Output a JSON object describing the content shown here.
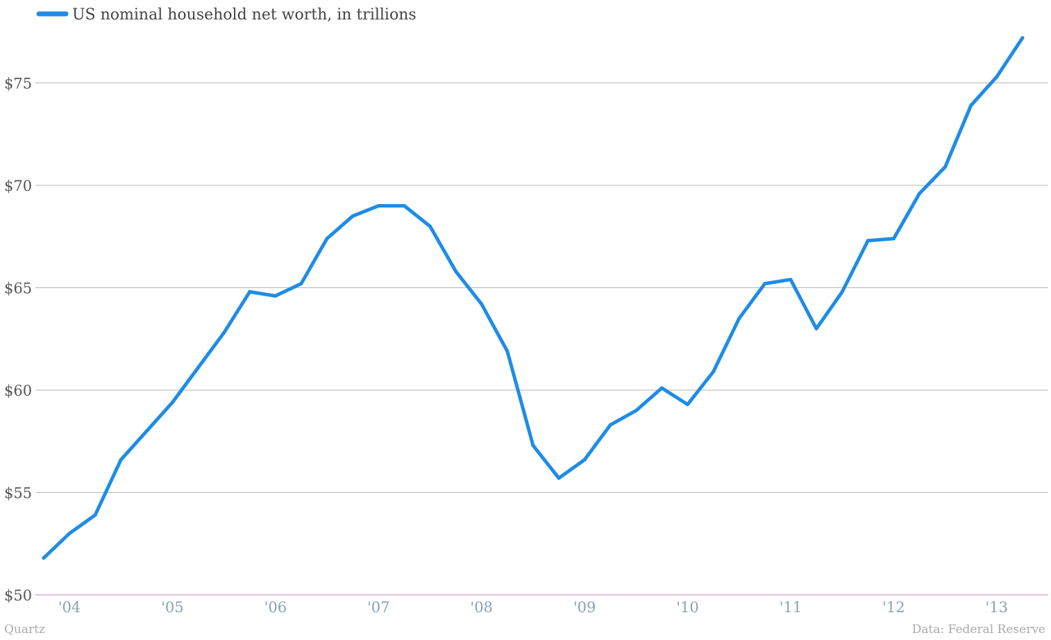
{
  "chart_data": {
    "type": "line",
    "ylim": [
      50,
      78
    ],
    "y_ticks": [
      50,
      55,
      60,
      65,
      70,
      75
    ],
    "y_tick_labels": [
      "$50",
      "$55",
      "$60",
      "$65",
      "$70",
      "$75"
    ],
    "x_tick_labels": [
      "'04",
      "'05",
      "'06",
      "'07",
      "'08",
      "'09",
      "'10",
      "'11",
      "'12",
      "'13"
    ],
    "x_tick_years": [
      2004,
      2005,
      2006,
      2007,
      2008,
      2009,
      2010,
      2011,
      2012,
      2013
    ],
    "xlim": [
      2003.67,
      2013.5
    ],
    "grid": true,
    "legend_position": "top-left",
    "series": [
      {
        "name": "US nominal household net worth, in trillions",
        "color": "#1f8ce6",
        "points": [
          {
            "x": "2003-10-01",
            "y": 51.8
          },
          {
            "x": "2004-01-01",
            "y": 53.0
          },
          {
            "x": "2004-04-01",
            "y": 53.9
          },
          {
            "x": "2004-07-01",
            "y": 56.6
          },
          {
            "x": "2004-10-01",
            "y": 58.0
          },
          {
            "x": "2005-01-01",
            "y": 59.4
          },
          {
            "x": "2005-04-01",
            "y": 61.1
          },
          {
            "x": "2005-07-01",
            "y": 62.8
          },
          {
            "x": "2005-10-01",
            "y": 64.8
          },
          {
            "x": "2006-01-01",
            "y": 64.6
          },
          {
            "x": "2006-04-01",
            "y": 65.2
          },
          {
            "x": "2006-07-01",
            "y": 67.4
          },
          {
            "x": "2006-10-01",
            "y": 68.5
          },
          {
            "x": "2007-01-01",
            "y": 69.0
          },
          {
            "x": "2007-04-01",
            "y": 69.0
          },
          {
            "x": "2007-07-01",
            "y": 68.0
          },
          {
            "x": "2007-10-01",
            "y": 65.8
          },
          {
            "x": "2008-01-01",
            "y": 64.2
          },
          {
            "x": "2008-04-01",
            "y": 61.9
          },
          {
            "x": "2008-07-01",
            "y": 57.3
          },
          {
            "x": "2008-10-01",
            "y": 55.7
          },
          {
            "x": "2009-01-01",
            "y": 56.6
          },
          {
            "x": "2009-04-01",
            "y": 58.3
          },
          {
            "x": "2009-07-01",
            "y": 59.0
          },
          {
            "x": "2009-10-01",
            "y": 60.1
          },
          {
            "x": "2010-01-01",
            "y": 59.3
          },
          {
            "x": "2010-04-01",
            "y": 60.9
          },
          {
            "x": "2010-07-01",
            "y": 63.5
          },
          {
            "x": "2010-10-01",
            "y": 65.2
          },
          {
            "x": "2011-01-01",
            "y": 65.4
          },
          {
            "x": "2011-04-01",
            "y": 63.0
          },
          {
            "x": "2011-07-01",
            "y": 64.8
          },
          {
            "x": "2011-10-01",
            "y": 67.3
          },
          {
            "x": "2012-01-01",
            "y": 67.4
          },
          {
            "x": "2012-04-01",
            "y": 69.6
          },
          {
            "x": "2012-07-01",
            "y": 70.9
          },
          {
            "x": "2012-10-01",
            "y": 73.9
          },
          {
            "x": "2013-01-01",
            "y": 75.3
          },
          {
            "x": "2013-04-01",
            "y": 77.2
          }
        ]
      }
    ]
  },
  "footer": {
    "source_left": "Quartz",
    "source_right": "Data: Federal Reserve"
  },
  "colors": {
    "grid": "#b5b5b5",
    "baseline": "#d97fc7"
  }
}
